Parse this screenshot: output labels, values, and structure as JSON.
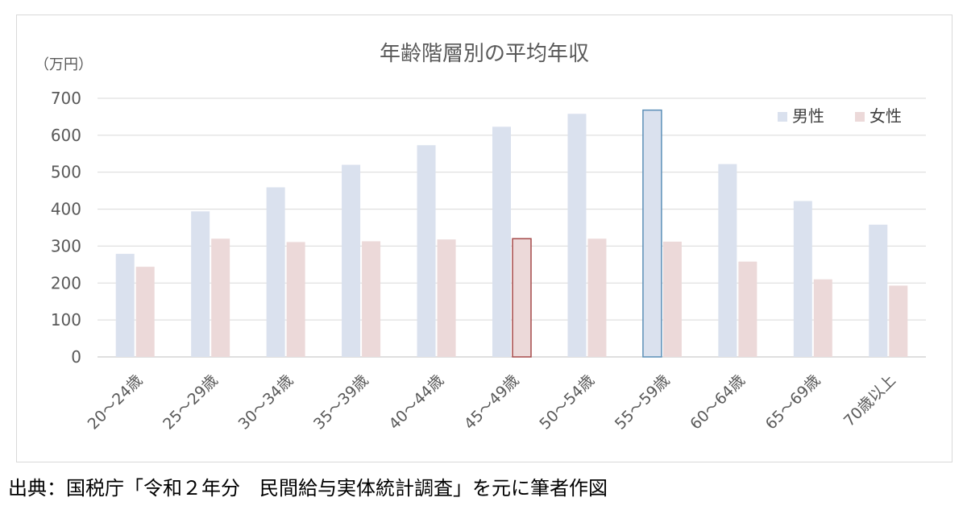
{
  "chart_data": {
    "type": "bar",
    "title": "年齢階層別の平均年収",
    "unit_label": "（万円）",
    "ylim": [
      0,
      700
    ],
    "yticks": [
      0,
      100,
      200,
      300,
      400,
      500,
      600,
      700
    ],
    "grid": true,
    "legend_position": "top-right",
    "categories": [
      "20～24歳",
      "25～29歳",
      "30～34歳",
      "35～39歳",
      "40～44歳",
      "45～49歳",
      "50～54歳",
      "55～59歳",
      "60～64歳",
      "65～69歳",
      "70歳以上"
    ],
    "series": [
      {
        "name": "男性",
        "color": "#dae1ee",
        "values": [
          279,
          394,
          459,
          520,
          573,
          623,
          658,
          668,
          522,
          422,
          358
        ]
      },
      {
        "name": "女性",
        "color": "#ecd9d9",
        "values": [
          244,
          320,
          311,
          313,
          318,
          320,
          320,
          312,
          258,
          210,
          193
        ]
      }
    ],
    "highlighted_bars": [
      {
        "series": 0,
        "category": 7,
        "outline": "#5b8fb7"
      },
      {
        "series": 1,
        "category": 5,
        "outline": "#a64b4b"
      }
    ]
  },
  "source_note": "出典：国税庁「令和２年分　民間給与実体統計調査」を元に筆者作図"
}
